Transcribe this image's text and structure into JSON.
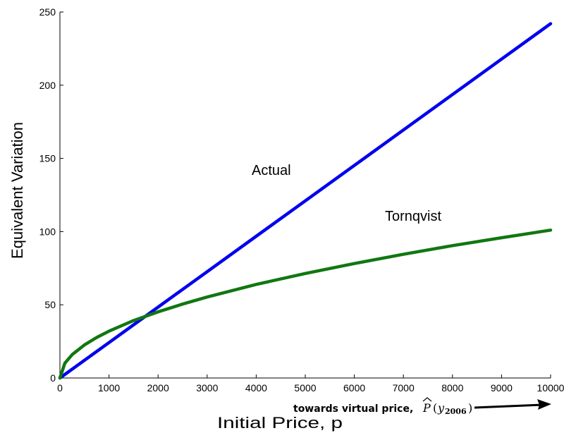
{
  "chart_data": {
    "type": "line",
    "title": "",
    "xlabel": "Initial Price, p",
    "ylabel": "Equivalent Variation",
    "xlim": [
      0,
      10000
    ],
    "ylim": [
      0,
      250
    ],
    "x_ticks": [
      0,
      1000,
      2000,
      3000,
      4000,
      5000,
      6000,
      7000,
      8000,
      9000,
      10000
    ],
    "y_ticks": [
      0,
      50,
      100,
      150,
      200,
      250
    ],
    "grid": false,
    "series": [
      {
        "name": "Actual",
        "color": "#0000ee",
        "x": [
          0,
          1000,
          2000,
          3000,
          4000,
          5000,
          6000,
          7000,
          8000,
          9000,
          10000
        ],
        "y": [
          0,
          24.2,
          48.4,
          72.6,
          96.8,
          121.0,
          145.2,
          169.4,
          193.6,
          217.8,
          242.0
        ]
      },
      {
        "name": "Tornqvist",
        "color": "#117711",
        "x": [
          0,
          100,
          250,
          500,
          750,
          1000,
          1500,
          2000,
          2500,
          3000,
          4000,
          5000,
          6000,
          7000,
          8000,
          9000,
          10000
        ],
        "y": [
          0,
          10.1,
          16.0,
          22.6,
          27.7,
          32.0,
          39.2,
          45.2,
          50.5,
          55.3,
          63.9,
          71.4,
          78.2,
          84.5,
          90.4,
          95.8,
          101.0
        ]
      }
    ],
    "annotations": {
      "actual_label": "Actual",
      "tornqvist_label": "Tornqvist",
      "arrow_note": "towards virtual price,",
      "arrow_math_P": "P",
      "arrow_math_open": "(",
      "arrow_math_y": "y",
      "arrow_math_sub": "2006",
      "arrow_math_close": ")"
    }
  }
}
